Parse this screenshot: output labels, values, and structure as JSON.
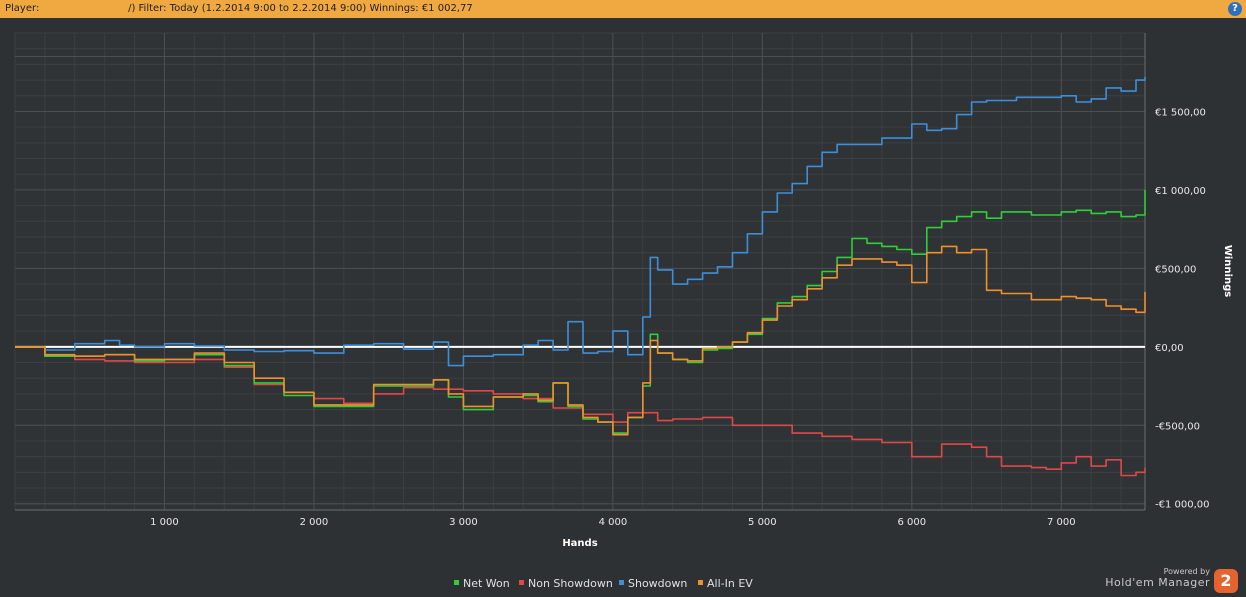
{
  "header": {
    "player_label": "Player:",
    "filter_text": "                        /) Filter: Today (1.2.2014 9:00 to 2.2.2014 9:00) Winnings: €1 002,77",
    "help_icon": "?"
  },
  "branding": {
    "powered_by": "Powered by",
    "product": "Hold'em Manager",
    "logo_text": "2"
  },
  "chart_data": {
    "type": "line",
    "xlabel": "Hands",
    "ylabel": "Winnings",
    "xlim": [
      0,
      7560
    ],
    "ylim": [
      -1040,
      2000
    ],
    "x_ticks": [
      1000,
      2000,
      3000,
      4000,
      5000,
      6000,
      7000
    ],
    "x_tick_labels": [
      "1 000",
      "2 000",
      "3 000",
      "4 000",
      "5 000",
      "6 000",
      "7 000"
    ],
    "y_ticks": [
      -1000,
      -500,
      0,
      500,
      1000,
      1500
    ],
    "y_tick_labels": [
      "-€1 000,00",
      "-€500,00",
      "€0,00",
      "€500,00",
      "€1 000,00",
      "€1 500,00"
    ],
    "grid": true,
    "legend_position": "bottom",
    "zero_line_color": "#ffffff",
    "series": [
      {
        "name": "Showdown",
        "color": "#3c8fd8",
        "x": [
          0,
          200,
          400,
          600,
          700,
          800,
          1000,
          1200,
          1400,
          1600,
          1800,
          2000,
          2200,
          2400,
          2600,
          2800,
          2900,
          3000,
          3200,
          3400,
          3500,
          3600,
          3700,
          3800,
          3900,
          4000,
          4100,
          4200,
          4250,
          4300,
          4400,
          4500,
          4600,
          4700,
          4800,
          4900,
          5000,
          5100,
          5200,
          5300,
          5400,
          5500,
          5600,
          5800,
          6000,
          6100,
          6200,
          6300,
          6400,
          6500,
          6700,
          6900,
          7000,
          7100,
          7200,
          7300,
          7400,
          7500,
          7560
        ],
        "y": [
          0,
          -20,
          20,
          40,
          10,
          0,
          20,
          5,
          -20,
          -30,
          -25,
          -40,
          10,
          20,
          -15,
          30,
          -120,
          -60,
          -50,
          10,
          40,
          -20,
          160,
          -40,
          -30,
          100,
          -50,
          190,
          570,
          490,
          400,
          430,
          470,
          510,
          600,
          720,
          860,
          980,
          1040,
          1150,
          1240,
          1290,
          1290,
          1330,
          1420,
          1380,
          1390,
          1480,
          1560,
          1570,
          1590,
          1590,
          1600,
          1560,
          1580,
          1650,
          1630,
          1700,
          1720
        ]
      },
      {
        "name": "Non Showdown",
        "color": "#e04848",
        "x": [
          0,
          200,
          400,
          600,
          800,
          1000,
          1200,
          1400,
          1600,
          1800,
          2000,
          2200,
          2400,
          2600,
          2800,
          3000,
          3200,
          3400,
          3600,
          3800,
          4000,
          4100,
          4200,
          4300,
          4400,
          4600,
          4800,
          5000,
          5200,
          5400,
          5600,
          5800,
          6000,
          6200,
          6400,
          6500,
          6600,
          6800,
          6900,
          7000,
          7100,
          7200,
          7300,
          7400,
          7500,
          7560
        ],
        "y": [
          0,
          -60,
          -80,
          -90,
          -100,
          -100,
          -80,
          -130,
          -240,
          -290,
          -330,
          -360,
          -300,
          -260,
          -270,
          -280,
          -300,
          -330,
          -390,
          -430,
          -480,
          -420,
          -420,
          -470,
          -460,
          -450,
          -500,
          -500,
          -550,
          -570,
          -590,
          -610,
          -700,
          -620,
          -640,
          -700,
          -760,
          -770,
          -780,
          -740,
          -700,
          -760,
          -720,
          -820,
          -800,
          -770
        ]
      },
      {
        "name": "Net Won",
        "color": "#2ed038",
        "x": [
          0,
          200,
          400,
          600,
          800,
          1000,
          1200,
          1400,
          1600,
          1800,
          2000,
          2200,
          2400,
          2600,
          2800,
          2900,
          3000,
          3200,
          3400,
          3500,
          3600,
          3700,
          3800,
          3900,
          4000,
          4100,
          4200,
          4250,
          4300,
          4400,
          4500,
          4600,
          4700,
          4800,
          4900,
          5000,
          5100,
          5200,
          5300,
          5400,
          5500,
          5600,
          5700,
          5800,
          5900,
          6000,
          6100,
          6200,
          6300,
          6400,
          6500,
          6600,
          6800,
          7000,
          7100,
          7200,
          7300,
          7400,
          7500,
          7560
        ],
        "y": [
          0,
          -60,
          -60,
          -50,
          -90,
          -80,
          -50,
          -120,
          -230,
          -310,
          -380,
          -380,
          -250,
          -250,
          -210,
          -320,
          -400,
          -320,
          -310,
          -350,
          -230,
          -380,
          -460,
          -480,
          -550,
          -450,
          -250,
          80,
          -40,
          -80,
          -100,
          -20,
          -10,
          30,
          80,
          180,
          280,
          320,
          390,
          480,
          570,
          690,
          660,
          640,
          620,
          590,
          760,
          800,
          830,
          860,
          820,
          860,
          840,
          860,
          870,
          850,
          860,
          830,
          840,
          1000
        ]
      },
      {
        "name": "All-In EV",
        "color": "#f0902c",
        "x": [
          0,
          200,
          400,
          600,
          800,
          1000,
          1200,
          1400,
          1600,
          1800,
          2000,
          2200,
          2400,
          2600,
          2800,
          2900,
          3000,
          3200,
          3400,
          3500,
          3600,
          3700,
          3800,
          3900,
          4000,
          4100,
          4200,
          4250,
          4300,
          4400,
          4500,
          4600,
          4700,
          4800,
          4900,
          5000,
          5100,
          5200,
          5300,
          5400,
          5500,
          5600,
          5700,
          5800,
          5900,
          6000,
          6100,
          6200,
          6300,
          6400,
          6500,
          6600,
          6800,
          7000,
          7100,
          7200,
          7300,
          7400,
          7500,
          7560
        ],
        "y": [
          0,
          -50,
          -60,
          -50,
          -80,
          -80,
          -40,
          -100,
          -200,
          -290,
          -370,
          -370,
          -240,
          -240,
          -210,
          -300,
          -380,
          -320,
          -300,
          -340,
          -230,
          -370,
          -450,
          -480,
          -560,
          -450,
          -230,
          40,
          -40,
          -80,
          -90,
          -10,
          0,
          30,
          90,
          170,
          260,
          300,
          370,
          440,
          520,
          560,
          560,
          540,
          520,
          410,
          600,
          640,
          600,
          620,
          360,
          340,
          300,
          320,
          310,
          300,
          260,
          240,
          220,
          350
        ]
      }
    ]
  }
}
